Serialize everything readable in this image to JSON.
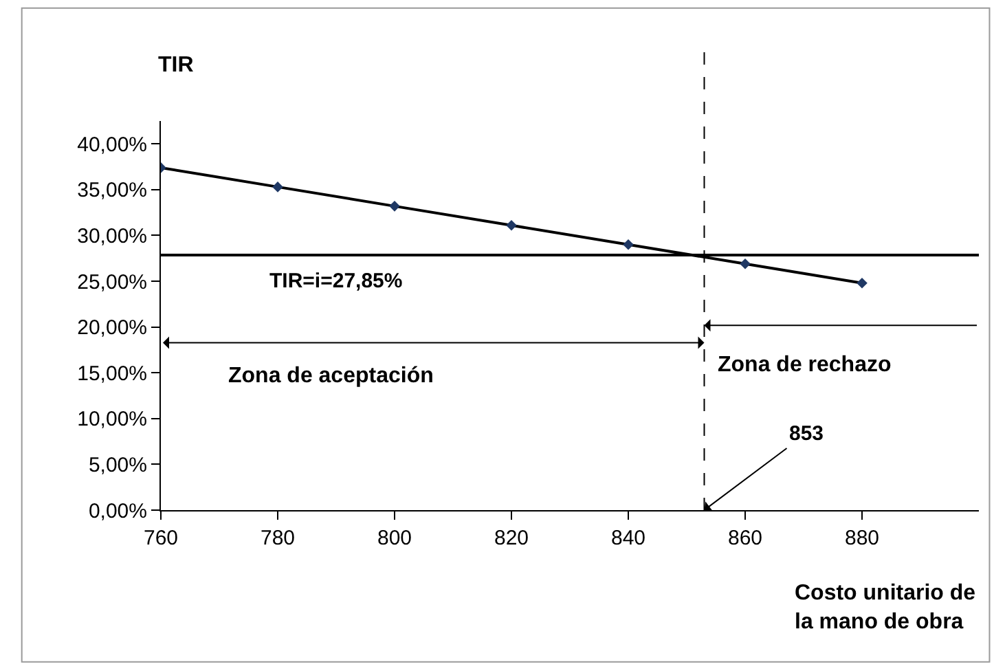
{
  "chart_data": {
    "type": "line",
    "xlabel": "Costo unitario de\nla mano de obra",
    "ylabel": "TIR",
    "x": [
      760,
      780,
      800,
      820,
      840,
      860,
      880
    ],
    "series": [
      {
        "color": "#000000",
        "values": [
          37.4,
          35.3,
          33.2,
          31.1,
          29.0,
          26.9,
          24.8
        ]
      }
    ],
    "marker": "diamond",
    "line_style": "solid",
    "xlim": [
      760,
      900
    ],
    "xticks": [
      760,
      780,
      800,
      820,
      840,
      860,
      880
    ],
    "ylim": [
      0,
      42.5
    ],
    "yticks": [
      {
        "value": 0,
        "label": "0,00%"
      },
      {
        "value": 5,
        "label": "5,00%"
      },
      {
        "value": 10,
        "label": "10,00%"
      },
      {
        "value": 15,
        "label": "15,00%"
      },
      {
        "value": 20,
        "label": "20,00%"
      },
      {
        "value": 25,
        "label": "25,00%"
      },
      {
        "value": 30,
        "label": "30,00%"
      },
      {
        "value": 35,
        "label": "35,00%"
      },
      {
        "value": 40,
        "label": "40,00%"
      }
    ],
    "ref_lines": [
      {
        "axis": "y",
        "value": 27.85,
        "label": "TIR=i=27,85%",
        "color": "#000000",
        "line_style": "solid"
      },
      {
        "axis": "x",
        "value": 853,
        "label": "853",
        "color": "#000000",
        "line_style": "dashed"
      }
    ],
    "annotations": [
      "Zona de aceptación",
      "Zona de rechazo"
    ]
  }
}
